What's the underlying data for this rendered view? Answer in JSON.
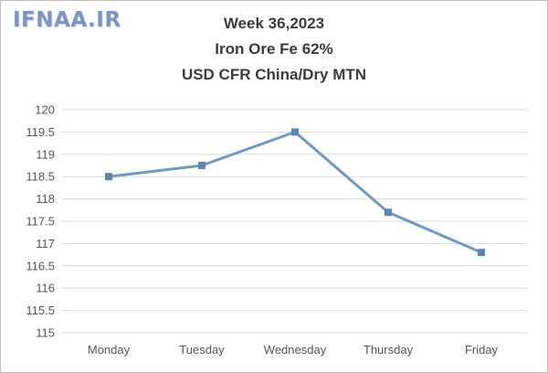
{
  "watermark": "IFNAA.IR",
  "chart_data": {
    "type": "line",
    "title": [
      "Week 36,2023",
      "Iron Ore Fe 62%",
      "USD CFR China/Dry MTN"
    ],
    "xlabel": "",
    "ylabel": "",
    "categories": [
      "Monday",
      "Tuesday",
      "Wednesday",
      "Thursday",
      "Friday"
    ],
    "series": [
      {
        "values": [
          118.5,
          118.75,
          119.5,
          117.7,
          116.8
        ]
      }
    ],
    "ylim": [
      115,
      120
    ],
    "ytick_step": 0.5,
    "yticks": [
      "115",
      "115.5",
      "116",
      "116.5",
      "117",
      "117.5",
      "118",
      "118.5",
      "119",
      "119.5",
      "120"
    ],
    "grid": true,
    "legend": "none",
    "line_color": "#6d9ac6",
    "marker_color": "#5b86b5",
    "grid_color": "#d9d9d9"
  }
}
